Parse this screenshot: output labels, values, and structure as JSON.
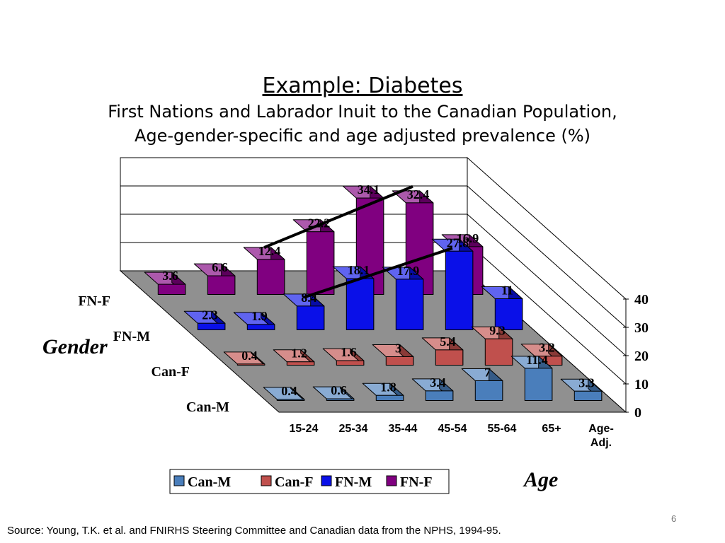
{
  "slide": {
    "title": "Example: Diabetes",
    "subtitle_line1": "First Nations and Labrador Inuit to the Canadian Population,",
    "subtitle_line2": "Age-gender-specific and age adjusted prevalence (%)",
    "source": "Source: Young, T.K. et al. and FNIRHS Steering Committee and  Canadian data from the NPHS, 1994-95.",
    "page_number": "6"
  },
  "chart_data": {
    "type": "bar",
    "subtype": "3d-column",
    "title": "",
    "xlabel": "Age",
    "ylabel": "Gender",
    "categories": [
      "15-24",
      "25-34",
      "35-44",
      "45-54",
      "55-64",
      "65+",
      "Age-Adj."
    ],
    "category_labels": [
      [
        "15-24"
      ],
      [
        "25-34"
      ],
      [
        "35-44"
      ],
      [
        "45-54"
      ],
      [
        "55-64"
      ],
      [
        "65+"
      ],
      [
        "Age-",
        "Adj."
      ]
    ],
    "zlim": [
      0,
      40
    ],
    "zticks": [
      0,
      10,
      20,
      30,
      40
    ],
    "grid": true,
    "legend_position": "bottom",
    "series": [
      {
        "name": "Can-M",
        "color": "#4a7ebb",
        "values": [
          0.4,
          0.6,
          1.8,
          3.4,
          7,
          11.4,
          3.3
        ]
      },
      {
        "name": "Can-F",
        "color": "#c0504d",
        "values": [
          0.4,
          1.2,
          1.6,
          3,
          5.4,
          9.3,
          3.2
        ]
      },
      {
        "name": "FN-M",
        "color": "#0a10e8",
        "values": [
          2.3,
          1.9,
          8.4,
          18.1,
          17.9,
          27.8,
          11
        ]
      },
      {
        "name": "FN-F",
        "color": "#800080",
        "values": [
          3.6,
          6.6,
          12.4,
          22.2,
          34.1,
          32.4,
          16.9
        ]
      }
    ],
    "trend_lines": [
      {
        "series": "FN-F",
        "from_category": "35-44",
        "to_category": "65+"
      },
      {
        "series": "FN-M",
        "from_category": "35-44",
        "to_category": "65+"
      }
    ]
  }
}
